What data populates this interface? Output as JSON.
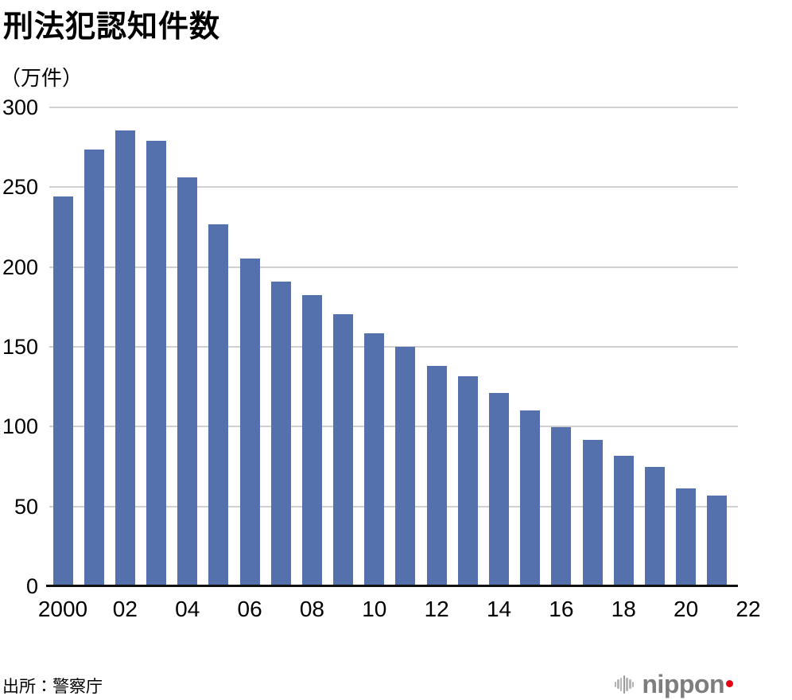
{
  "header": {
    "title": "刑法犯認知件数",
    "unit_label": "（万件）"
  },
  "chart_data": {
    "type": "bar",
    "title": "刑法犯認知件数",
    "ylabel": "（万件）",
    "years": [
      2000,
      2001,
      2002,
      2003,
      2004,
      2005,
      2006,
      2007,
      2008,
      2009,
      2010,
      2011,
      2012,
      2013,
      2014,
      2015,
      2016,
      2017,
      2018,
      2019,
      2020,
      2021
    ],
    "values": [
      244.4,
      273.5,
      285.4,
      279.0,
      256.3,
      226.9,
      205.1,
      190.9,
      182.6,
      170.3,
      158.6,
      150.2,
      138.2,
      131.4,
      121.2,
      109.9,
      99.6,
      91.5,
      81.7,
      74.9,
      61.4,
      56.8
    ],
    "x_ticks": [
      {
        "year": 2000,
        "label": "2000"
      },
      {
        "year": 2002,
        "label": "02"
      },
      {
        "year": 2004,
        "label": "04"
      },
      {
        "year": 2006,
        "label": "06"
      },
      {
        "year": 2008,
        "label": "08"
      },
      {
        "year": 2010,
        "label": "10"
      },
      {
        "year": 2012,
        "label": "12"
      },
      {
        "year": 2014,
        "label": "14"
      },
      {
        "year": 2016,
        "label": "16"
      },
      {
        "year": 2018,
        "label": "18"
      },
      {
        "year": 2020,
        "label": "20"
      },
      {
        "year": 2022,
        "label": "22"
      }
    ],
    "y_ticks": [
      0,
      50,
      100,
      150,
      200,
      250,
      300
    ],
    "ylim": [
      0,
      300
    ],
    "grid": true,
    "legend": false,
    "bar_color": "#5571ad",
    "grid_color": "#d0d0d0",
    "axis_color": "#111111"
  },
  "footer": {
    "source": "出所：警察庁",
    "logo": {
      "text": "nippon",
      "dot_color": "#e60012",
      "icon": "soundwave-icon"
    }
  }
}
